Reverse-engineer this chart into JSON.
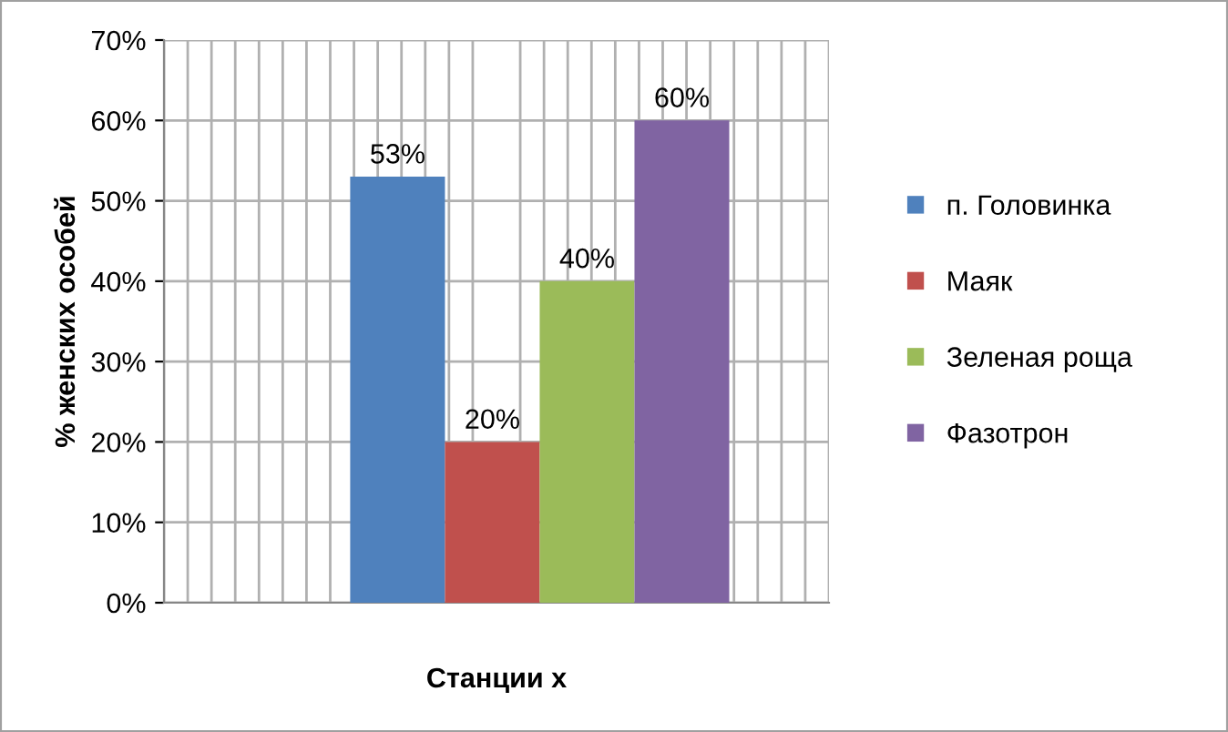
{
  "chart_data": {
    "type": "bar",
    "categories": [
      null
    ],
    "xlabel": "Станции х",
    "ylabel": "% женских особей",
    "ylim": [
      0,
      70
    ],
    "yticks": [
      {
        "value": 0,
        "label": "0%"
      },
      {
        "value": 10,
        "label": "10%"
      },
      {
        "value": 20,
        "label": "20%"
      },
      {
        "value": 30,
        "label": "30%"
      },
      {
        "value": 40,
        "label": "40%"
      },
      {
        "value": 50,
        "label": "50%"
      },
      {
        "value": 60,
        "label": "60%"
      },
      {
        "value": 70,
        "label": "70%"
      }
    ],
    "series": [
      {
        "name": "п. Головинка",
        "color": "#4f81bd",
        "values": [
          53
        ],
        "value_labels": [
          "53%"
        ]
      },
      {
        "name": "Маяк",
        "color": "#c0504d",
        "values": [
          20
        ],
        "value_labels": [
          "20%"
        ]
      },
      {
        "name": "Зеленая роща",
        "color": "#9bbb59",
        "values": [
          40
        ],
        "value_labels": [
          "40%"
        ]
      },
      {
        "name": "Фазотрон",
        "color": "#8064a2",
        "values": [
          60
        ],
        "value_labels": [
          "60%"
        ]
      }
    ],
    "grid": true,
    "legend": "right"
  }
}
